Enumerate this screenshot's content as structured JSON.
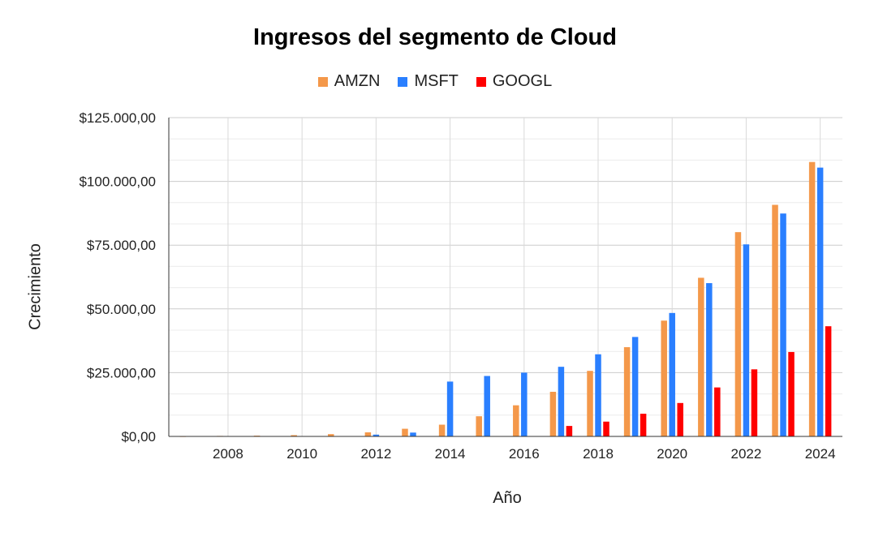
{
  "chart_data": {
    "type": "bar",
    "title": "Ingresos del segmento de Cloud",
    "xlabel": "Año",
    "ylabel": "Crecimiento",
    "ylim": [
      0,
      125000
    ],
    "y_ticks": [
      "$0,00",
      "$25.000,00",
      "$50.000,00",
      "$75.000,00",
      "$100.000,00",
      "$125.000,00"
    ],
    "x_tick_labels": [
      "2008",
      "2010",
      "2012",
      "2014",
      "2016",
      "2018",
      "2020",
      "2022",
      "2024"
    ],
    "categories": [
      "2007",
      "2008",
      "2009",
      "2010",
      "2011",
      "2012",
      "2013",
      "2014",
      "2015",
      "2016",
      "2017",
      "2018",
      "2019",
      "2020",
      "2021",
      "2022",
      "2023",
      "2024"
    ],
    "series": [
      {
        "name": "AMZN",
        "color": "#f4984a",
        "values": [
          50,
          200,
          300,
          500,
          900,
          1600,
          3000,
          4600,
          7900,
          12200,
          17500,
          25700,
          35000,
          45400,
          62200,
          80100,
          90800,
          107600
        ]
      },
      {
        "name": "MSFT",
        "color": "#2a7fff",
        "values": [
          0,
          0,
          0,
          0,
          0,
          700,
          1500,
          21500,
          23700,
          25000,
          27300,
          32200,
          39000,
          48400,
          60100,
          75300,
          87400,
          105400
        ]
      },
      {
        "name": "GOOGL",
        "color": "#ff0000",
        "values": [
          0,
          0,
          0,
          0,
          0,
          0,
          0,
          0,
          0,
          0,
          4100,
          5800,
          8900,
          13100,
          19200,
          26300,
          33100,
          43200
        ]
      }
    ],
    "grid": true,
    "legend_position": "top-center"
  }
}
